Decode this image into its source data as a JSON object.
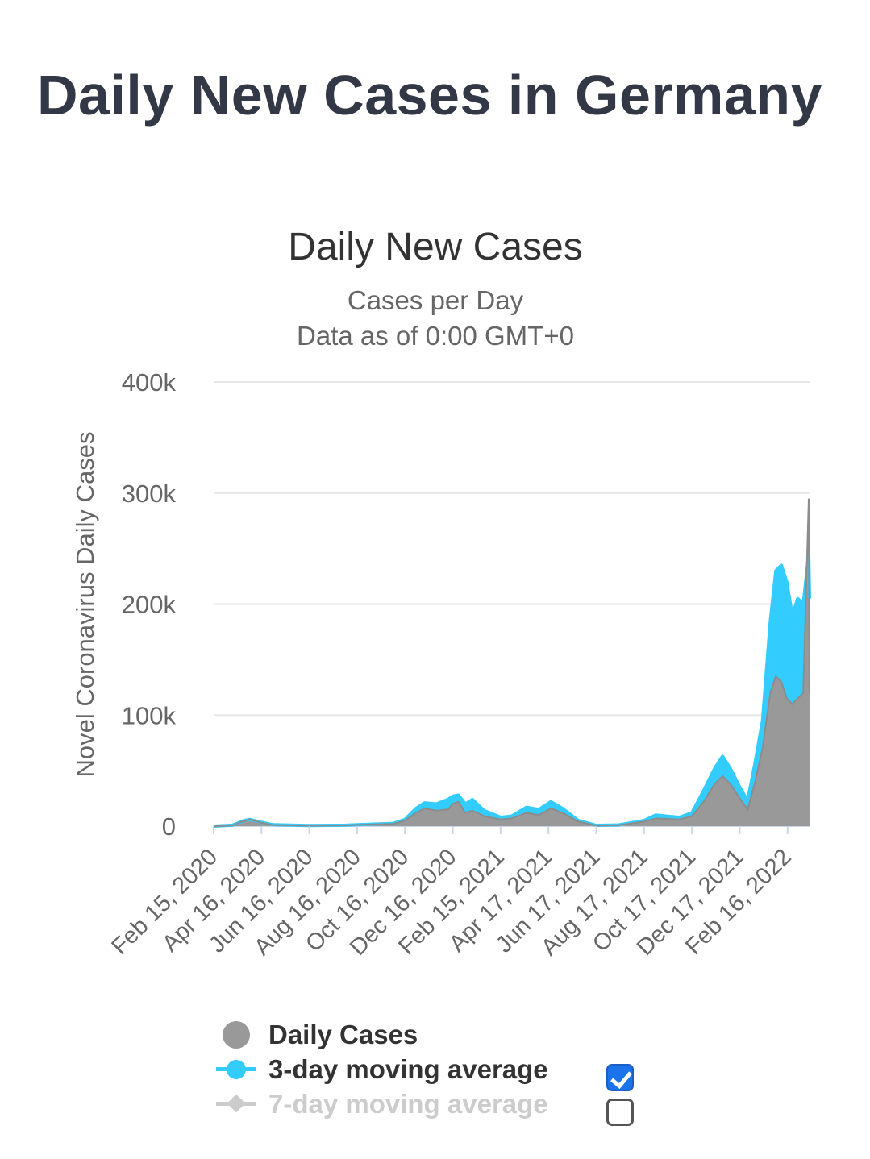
{
  "page": {
    "title": "Daily New Cases in Germany"
  },
  "legend": {
    "items": [
      {
        "label": "Daily Cases",
        "color": "#999999",
        "symbol": "circle",
        "enabled": true
      },
      {
        "label": "3-day moving average",
        "color": "#33ccff",
        "symbol": "line-circle",
        "enabled": true,
        "checked": true
      },
      {
        "label": "7-day moving average",
        "color": "#cccccc",
        "symbol": "line-diamond",
        "enabled": false,
        "checked": false
      }
    ]
  },
  "chart_data": {
    "type": "area",
    "title": "Daily New Cases",
    "subtitle": [
      "Cases per Day",
      "Data as of 0:00 GMT+0"
    ],
    "xlabel": "",
    "ylabel": "Novel Coronavirus Daily Cases",
    "ylim": [
      0,
      400000
    ],
    "yticks": [
      {
        "value": 0,
        "label": "0"
      },
      {
        "value": 100000,
        "label": "100k"
      },
      {
        "value": 200000,
        "label": "200k"
      },
      {
        "value": 300000,
        "label": "300k"
      },
      {
        "value": 400000,
        "label": "400k"
      }
    ],
    "xlim": [
      "2020-02-15",
      "2022-03-16"
    ],
    "xticks": [
      {
        "date": "2020-02-15",
        "label": "Feb 15, 2020"
      },
      {
        "date": "2020-04-16",
        "label": "Apr 16, 2020"
      },
      {
        "date": "2020-06-16",
        "label": "Jun 16, 2020"
      },
      {
        "date": "2020-08-16",
        "label": "Aug 16, 2020"
      },
      {
        "date": "2020-10-16",
        "label": "Oct 16, 2020"
      },
      {
        "date": "2020-12-16",
        "label": "Dec 16, 2020"
      },
      {
        "date": "2021-02-15",
        "label": "Feb 15, 2021"
      },
      {
        "date": "2021-04-17",
        "label": "Apr 17, 2021"
      },
      {
        "date": "2021-06-17",
        "label": "Jun 17, 2021"
      },
      {
        "date": "2021-08-17",
        "label": "Aug 17, 2021"
      },
      {
        "date": "2021-10-17",
        "label": "Oct 17, 2021"
      },
      {
        "date": "2021-12-17",
        "label": "Dec 17, 2021"
      },
      {
        "date": "2022-02-16",
        "label": "Feb 16, 2022"
      }
    ],
    "grid": true,
    "legend_position": "bottom",
    "series": [
      {
        "name": "Daily Cases",
        "kind": "area",
        "color": "#999999",
        "points": [
          [
            "2020-02-15",
            0
          ],
          [
            "2020-03-10",
            500
          ],
          [
            "2020-03-22",
            4000
          ],
          [
            "2020-04-01",
            6000
          ],
          [
            "2020-04-16",
            3000
          ],
          [
            "2020-05-01",
            1000
          ],
          [
            "2020-06-15",
            400
          ],
          [
            "2020-08-01",
            700
          ],
          [
            "2020-08-20",
            1200
          ],
          [
            "2020-10-01",
            2000
          ],
          [
            "2020-10-16",
            5000
          ],
          [
            "2020-10-30",
            12000
          ],
          [
            "2020-11-10",
            16000
          ],
          [
            "2020-11-25",
            14000
          ],
          [
            "2020-12-10",
            15000
          ],
          [
            "2020-12-16",
            20000
          ],
          [
            "2020-12-23",
            22000
          ],
          [
            "2021-01-01",
            12000
          ],
          [
            "2021-01-10",
            14000
          ],
          [
            "2021-01-25",
            9000
          ],
          [
            "2021-02-15",
            6000
          ],
          [
            "2021-03-01",
            7000
          ],
          [
            "2021-03-20",
            12000
          ],
          [
            "2021-04-05",
            10000
          ],
          [
            "2021-04-20",
            16000
          ],
          [
            "2021-05-05",
            12000
          ],
          [
            "2021-05-25",
            4000
          ],
          [
            "2021-06-17",
            600
          ],
          [
            "2021-07-15",
            800
          ],
          [
            "2021-08-17",
            4000
          ],
          [
            "2021-09-01",
            7000
          ],
          [
            "2021-09-15",
            6500
          ],
          [
            "2021-10-01",
            6000
          ],
          [
            "2021-10-17",
            9000
          ],
          [
            "2021-11-01",
            22000
          ],
          [
            "2021-11-15",
            38000
          ],
          [
            "2021-11-25",
            45000
          ],
          [
            "2021-12-05",
            38000
          ],
          [
            "2021-12-17",
            25000
          ],
          [
            "2021-12-27",
            15000
          ],
          [
            "2022-01-05",
            38000
          ],
          [
            "2022-01-15",
            70000
          ],
          [
            "2022-01-25",
            120000
          ],
          [
            "2022-02-01",
            135000
          ],
          [
            "2022-02-08",
            130000
          ],
          [
            "2022-02-15",
            115000
          ],
          [
            "2022-02-22",
            110000
          ],
          [
            "2022-03-01",
            115000
          ],
          [
            "2022-03-08",
            120000
          ],
          [
            "2022-03-15",
            295000
          ],
          [
            "2022-03-16",
            120000
          ]
        ]
      },
      {
        "name": "3-day moving average",
        "kind": "line",
        "color": "#33ccff",
        "points": [
          [
            "2020-02-15",
            0
          ],
          [
            "2020-03-10",
            800
          ],
          [
            "2020-03-25",
            5000
          ],
          [
            "2020-04-01",
            6000
          ],
          [
            "2020-04-16",
            3500
          ],
          [
            "2020-05-01",
            1200
          ],
          [
            "2020-06-15",
            500
          ],
          [
            "2020-08-01",
            800
          ],
          [
            "2020-08-20",
            1400
          ],
          [
            "2020-10-01",
            2500
          ],
          [
            "2020-10-16",
            6000
          ],
          [
            "2020-10-30",
            16000
          ],
          [
            "2020-11-10",
            21000
          ],
          [
            "2020-11-25",
            20000
          ],
          [
            "2020-12-10",
            24000
          ],
          [
            "2020-12-16",
            27000
          ],
          [
            "2020-12-23",
            28000
          ],
          [
            "2021-01-01",
            20000
          ],
          [
            "2021-01-10",
            24000
          ],
          [
            "2021-01-25",
            14000
          ],
          [
            "2021-02-15",
            8000
          ],
          [
            "2021-03-01",
            9000
          ],
          [
            "2021-03-20",
            17000
          ],
          [
            "2021-04-05",
            15000
          ],
          [
            "2021-04-20",
            22000
          ],
          [
            "2021-05-05",
            16000
          ],
          [
            "2021-05-25",
            5000
          ],
          [
            "2021-06-17",
            700
          ],
          [
            "2021-07-15",
            1000
          ],
          [
            "2021-08-17",
            5000
          ],
          [
            "2021-09-01",
            10000
          ],
          [
            "2021-09-15",
            9000
          ],
          [
            "2021-10-01",
            8000
          ],
          [
            "2021-10-17",
            12000
          ],
          [
            "2021-11-01",
            32000
          ],
          [
            "2021-11-15",
            52000
          ],
          [
            "2021-11-25",
            63000
          ],
          [
            "2021-12-05",
            52000
          ],
          [
            "2021-12-17",
            35000
          ],
          [
            "2021-12-27",
            23000
          ],
          [
            "2022-01-05",
            55000
          ],
          [
            "2022-01-15",
            95000
          ],
          [
            "2022-01-25",
            185000
          ],
          [
            "2022-02-01",
            230000
          ],
          [
            "2022-02-08",
            235000
          ],
          [
            "2022-02-15",
            220000
          ],
          [
            "2022-02-22",
            190000
          ],
          [
            "2022-03-01",
            205000
          ],
          [
            "2022-03-08",
            200000
          ],
          [
            "2022-03-15",
            245000
          ],
          [
            "2022-03-16",
            205000
          ]
        ]
      }
    ]
  }
}
